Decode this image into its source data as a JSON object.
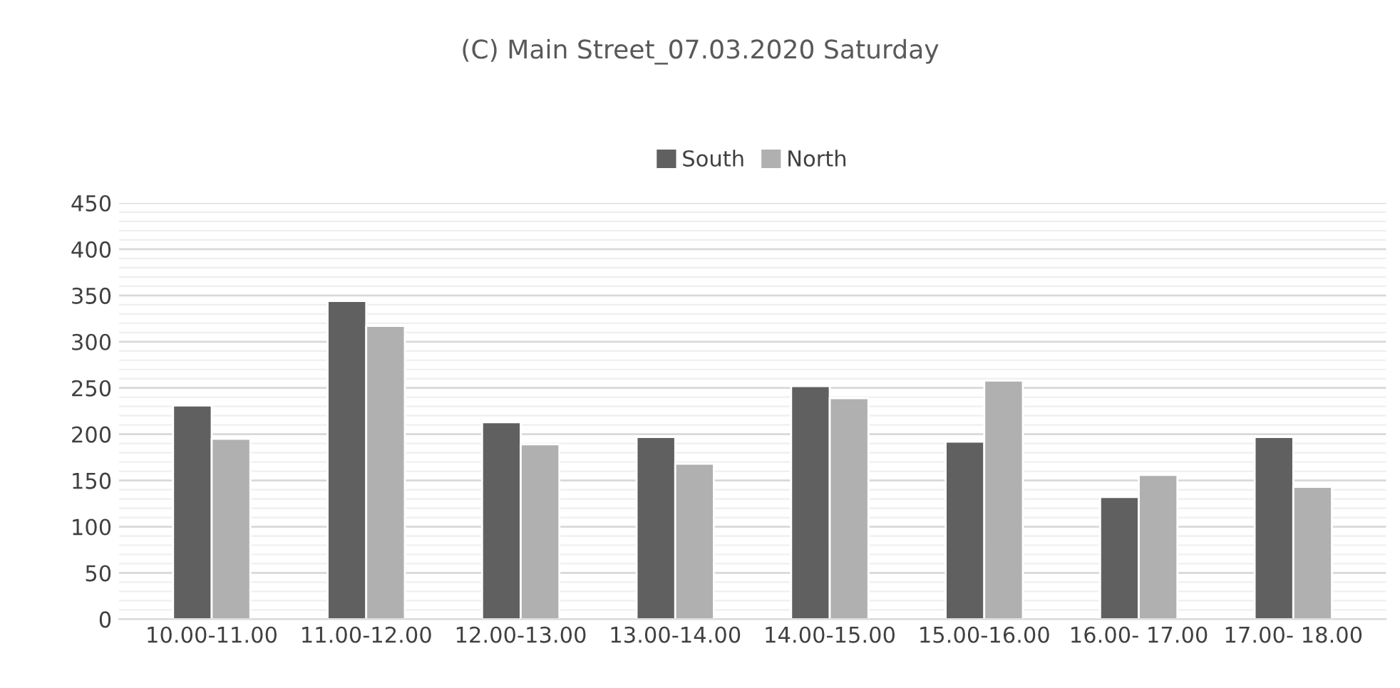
{
  "chart_data": {
    "type": "bar",
    "title": "(C) Main Street_07.03.2020 Saturday",
    "categories": [
      "10.00-11.00",
      "11.00-12.00",
      "12.00-13.00",
      "13.00-14.00",
      "14.00-15.00",
      "15.00-16.00",
      "16.00- 17.00",
      "17.00- 18.00"
    ],
    "series": [
      {
        "name": "South",
        "color": "#606060",
        "values": [
          231,
          344,
          213,
          197,
          252,
          192,
          132,
          197
        ]
      },
      {
        "name": "North",
        "color": "#b0b0b0",
        "values": [
          195,
          317,
          189,
          168,
          239,
          258,
          156,
          143
        ]
      }
    ],
    "ylim": [
      0,
      450
    ],
    "yticks": [
      0,
      50,
      100,
      150,
      200,
      250,
      300,
      350,
      400,
      450
    ],
    "grid": "y",
    "legend": "top"
  }
}
